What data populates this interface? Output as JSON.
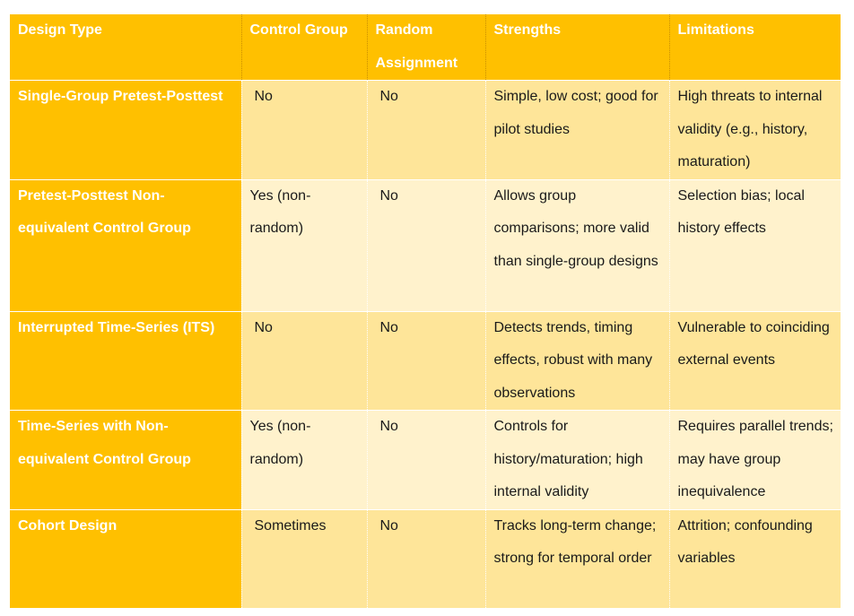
{
  "table": {
    "headers": [
      "Design Type",
      "Control Group",
      "Random Assignment",
      "Strengths",
      "Limitations"
    ],
    "rows": [
      {
        "design": "Single-Group Pretest-Posttest",
        "control": "No",
        "random": "No",
        "strengths": "Simple, low cost; good for pilot studies",
        "limitations": "High threats to internal validity (e.g., history, maturation)"
      },
      {
        "design": "Pretest-Posttest Non-equivalent Control Group",
        "control": "Yes (non-random)",
        "random": "No",
        "strengths": "Allows group comparisons; more valid than single-group designs",
        "limitations": "Selection bias; local history effects"
      },
      {
        "design": "Interrupted Time-Series (ITS)",
        "control": "No",
        "random": "No",
        "strengths": "Detects trends, timing effects, robust with many observations",
        "limitations": "Vulnerable to coinciding external events"
      },
      {
        "design": "Time-Series with Non-equivalent Control Group",
        "control": "Yes (non-random)",
        "random": "No",
        "strengths": "Controls for history/maturation; high internal validity",
        "limitations": "Requires parallel trends; may have group inequivalence"
      },
      {
        "design": "Cohort Design",
        "control": "Sometimes",
        "random": "No",
        "strengths": "Tracks long-term change; strong for temporal order",
        "limitations": "Attrition; confounding variables"
      }
    ]
  },
  "colors": {
    "header_and_first_column": "#ffc000",
    "row_shade_dark": "#fee599",
    "row_shade_light": "#fff2cc",
    "header_text": "#ffffff"
  }
}
